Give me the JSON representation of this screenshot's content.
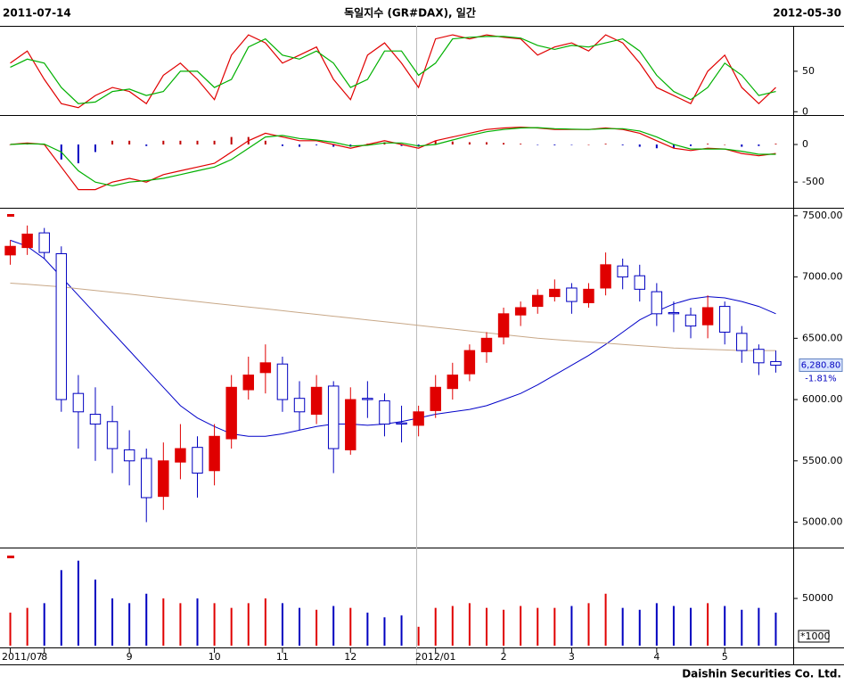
{
  "header": {
    "start": "2011-07-14",
    "title": "독일지수 (GR#DAX), 일간",
    "end": "2012-05-30"
  },
  "footer": "Daishin Securities Co. Ltd.",
  "chart_data": [
    {
      "type": "line",
      "ylim": [
        -3,
        105
      ],
      "yticks": [
        0,
        50
      ],
      "series": [
        {
          "color": "#e00000",
          "values": [
            60,
            75,
            40,
            10,
            5,
            20,
            30,
            25,
            10,
            45,
            60,
            40,
            15,
            70,
            95,
            85,
            60,
            70,
            80,
            40,
            15,
            70,
            85,
            60,
            30,
            90,
            95,
            90,
            95,
            92,
            90,
            70,
            80,
            85,
            75,
            95,
            85,
            60,
            30,
            20,
            10,
            50,
            70,
            30,
            10,
            30
          ]
        },
        {
          "color": "#00b000",
          "values": [
            55,
            65,
            60,
            30,
            10,
            12,
            25,
            28,
            20,
            25,
            50,
            50,
            30,
            40,
            80,
            90,
            70,
            65,
            75,
            60,
            30,
            40,
            75,
            75,
            45,
            60,
            90,
            92,
            93,
            93,
            91,
            82,
            77,
            82,
            80,
            85,
            90,
            75,
            45,
            25,
            15,
            30,
            60,
            45,
            20,
            25
          ]
        }
      ]
    },
    {
      "type": "line",
      "ylim": [
        -830,
        380
      ],
      "yticks": [
        0,
        -500
      ],
      "histogram": {
        "up_color": "#c00000",
        "down_color": "#0000c0",
        "values": [
          0,
          10,
          -5,
          -200,
          -250,
          -100,
          50,
          50,
          -20,
          50,
          50,
          50,
          50,
          100,
          100,
          50,
          -20,
          -30,
          -10,
          -30,
          -30,
          10,
          30,
          -20,
          -30,
          50,
          40,
          30,
          30,
          20,
          10,
          -5,
          -10,
          -5,
          0,
          10,
          -10,
          -30,
          -50,
          -50,
          -20,
          10,
          0,
          -30,
          -20,
          10
        ]
      },
      "series": [
        {
          "color": "#e00000",
          "values": [
            0,
            20,
            0,
            -300,
            -600,
            -600,
            -500,
            -450,
            -500,
            -400,
            -350,
            -300,
            -250,
            -100,
            50,
            150,
            100,
            50,
            50,
            0,
            -50,
            0,
            50,
            0,
            -50,
            50,
            100,
            150,
            200,
            220,
            230,
            220,
            200,
            200,
            200,
            220,
            200,
            150,
            50,
            -50,
            -80,
            -50,
            -60,
            -120,
            -150,
            -120
          ]
        },
        {
          "color": "#00b000",
          "values": [
            0,
            10,
            5,
            -100,
            -350,
            -500,
            -550,
            -500,
            -480,
            -450,
            -400,
            -350,
            -300,
            -200,
            -50,
            100,
            120,
            80,
            60,
            30,
            -20,
            -10,
            20,
            20,
            -20,
            0,
            60,
            120,
            170,
            200,
            220,
            225,
            210,
            205,
            200,
            210,
            210,
            180,
            100,
            0,
            -60,
            -60,
            -60,
            -90,
            -130,
            -130
          ]
        }
      ]
    },
    {
      "type": "candlestick",
      "ylim": [
        4800,
        7550
      ],
      "up_color": "#e00000",
      "down_color": "#0000c0",
      "yticks": [
        {
          "value": 5000,
          "label": "5000.00"
        },
        {
          "value": 5500,
          "label": "5500.00"
        },
        {
          "value": 6000,
          "label": "6000.00"
        },
        {
          "value": 6500,
          "label": "6500.00"
        },
        {
          "value": 7000,
          "label": "7000.00"
        },
        {
          "value": 7500,
          "label": "7500.00"
        }
      ],
      "open": [
        7180,
        7240,
        7360,
        7190,
        6050,
        5880,
        5820,
        5590,
        5520,
        5210,
        5490,
        5610,
        5420,
        5680,
        6080,
        6220,
        6290,
        6010,
        5880,
        6110,
        5590,
        6010,
        5990,
        5810,
        5790,
        5910,
        6090,
        6210,
        6390,
        6510,
        6690,
        6760,
        6840,
        6910,
        6790,
        6910,
        7090,
        7010,
        6880,
        6710,
        6690,
        6610,
        6760,
        6540,
        6410,
        6310
      ],
      "high": [
        7300,
        7420,
        7400,
        7250,
        6200,
        6100,
        5950,
        5750,
        5600,
        5650,
        5800,
        5700,
        5800,
        6200,
        6350,
        6450,
        6350,
        6150,
        6200,
        6150,
        6100,
        6150,
        6050,
        5950,
        5950,
        6200,
        6300,
        6450,
        6550,
        6750,
        6800,
        6900,
        6980,
        6950,
        6950,
        7200,
        7150,
        7100,
        6950,
        6800,
        6750,
        6850,
        6800,
        6600,
        6450,
        6400
      ],
      "low": [
        7100,
        7180,
        7150,
        5900,
        5600,
        5500,
        5400,
        5300,
        5000,
        5100,
        5350,
        5200,
        5300,
        5600,
        6000,
        6050,
        5900,
        5750,
        5800,
        5400,
        5550,
        5850,
        5700,
        5650,
        5700,
        5850,
        6000,
        6150,
        6300,
        6450,
        6600,
        6700,
        6800,
        6700,
        6750,
        6850,
        6900,
        6800,
        6600,
        6550,
        6500,
        6500,
        6450,
        6300,
        6200,
        6220
      ],
      "close": [
        7250,
        7350,
        7200,
        6000,
        5900,
        5800,
        5600,
        5500,
        5200,
        5500,
        5600,
        5400,
        5700,
        6100,
        6200,
        6300,
        6000,
        5900,
        6100,
        5600,
        6000,
        6000,
        5800,
        5800,
        5900,
        6100,
        6200,
        6400,
        6500,
        6700,
        6750,
        6850,
        6900,
        6800,
        6900,
        7100,
        7000,
        6900,
        6700,
        6700,
        6600,
        6750,
        6550,
        6400,
        6300,
        6280.8
      ],
      "overlays": [
        {
          "color": "#0000c8",
          "values": [
            7300,
            7250,
            7150,
            7000,
            6850,
            6700,
            6550,
            6400,
            6250,
            6100,
            5950,
            5850,
            5780,
            5720,
            5700,
            5700,
            5720,
            5750,
            5780,
            5800,
            5800,
            5790,
            5800,
            5820,
            5850,
            5880,
            5900,
            5920,
            5950,
            6000,
            6050,
            6120,
            6200,
            6280,
            6360,
            6450,
            6550,
            6650,
            6720,
            6780,
            6820,
            6840,
            6830,
            6800,
            6760,
            6700
          ]
        },
        {
          "color": "#c8a888",
          "values": [
            6950,
            6940,
            6930,
            6920,
            6905,
            6890,
            6875,
            6860,
            6845,
            6830,
            6815,
            6800,
            6785,
            6770,
            6755,
            6740,
            6725,
            6710,
            6695,
            6680,
            6665,
            6650,
            6635,
            6620,
            6605,
            6590,
            6575,
            6560,
            6545,
            6530,
            6515,
            6500,
            6490,
            6480,
            6470,
            6460,
            6450,
            6440,
            6430,
            6420,
            6415,
            6410,
            6405,
            6400,
            6400,
            6400
          ]
        }
      ],
      "last_price_label": "6,280.80",
      "change_label": "-1.81%"
    },
    {
      "type": "bar",
      "ylim": [
        0,
        102000
      ],
      "yticks": [
        50000
      ],
      "unit_label": "*1000",
      "categories": [
        "2011/07",
        null,
        "8",
        null,
        null,
        null,
        null,
        "9",
        null,
        null,
        null,
        null,
        "10",
        null,
        null,
        null,
        "11",
        null,
        null,
        null,
        "12",
        null,
        null,
        null,
        null,
        "2012/01",
        null,
        null,
        null,
        "2",
        null,
        null,
        null,
        "3",
        null,
        null,
        null,
        null,
        "4",
        null,
        null,
        null,
        "5",
        null,
        null,
        null
      ],
      "values": [
        35000,
        40000,
        45000,
        80000,
        90000,
        70000,
        50000,
        45000,
        55000,
        50000,
        45000,
        50000,
        45000,
        40000,
        45000,
        50000,
        45000,
        40000,
        38000,
        42000,
        40000,
        35000,
        30000,
        32000,
        20000,
        40000,
        42000,
        45000,
        40000,
        38000,
        42000,
        40000,
        40000,
        42000,
        45000,
        55000,
        40000,
        38000,
        45000,
        42000,
        40000,
        45000,
        42000,
        38000,
        40000,
        35000
      ]
    }
  ]
}
